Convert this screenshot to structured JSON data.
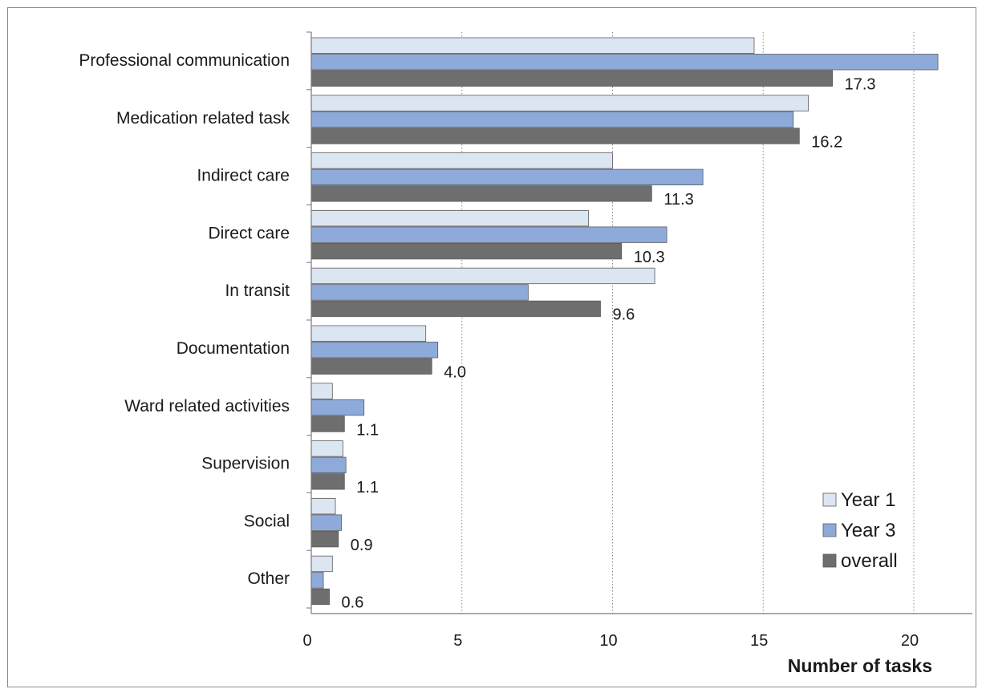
{
  "chart_data": {
    "type": "bar",
    "orientation": "horizontal",
    "title": "",
    "xlabel": "Number of tasks",
    "ylabel": "",
    "xlim": [
      0,
      22
    ],
    "xticks": [
      0,
      5,
      10,
      15,
      20
    ],
    "xtick_labels": [
      "0",
      "5",
      "10",
      "15",
      "20"
    ],
    "grid": "vertical dotted",
    "legend_position": "bottom-right",
    "categories": [
      "Professional communication",
      "Medication related task",
      "Indirect care",
      "Direct care",
      "In transit",
      "Documentation",
      "Ward related  activities",
      "Supervision",
      "Social",
      "Other"
    ],
    "series": [
      {
        "name": "Year 1",
        "color": "#dce6f2",
        "values": [
          14.7,
          16.5,
          10.0,
          9.2,
          11.4,
          3.8,
          0.7,
          1.05,
          0.8,
          0.7
        ]
      },
      {
        "name": "Year 3",
        "color": "#8eaadb",
        "values": [
          20.8,
          16.0,
          13.0,
          11.8,
          7.2,
          4.2,
          1.75,
          1.15,
          1.0,
          0.4
        ]
      },
      {
        "name": "overall",
        "color": "#6e6e6e",
        "values": [
          17.3,
          16.2,
          11.3,
          10.3,
          9.6,
          4.0,
          1.1,
          1.1,
          0.9,
          0.6
        ]
      }
    ],
    "data_labels": [
      "17.3",
      "16.2",
      "11.3",
      "10.3",
      "9.6",
      "4.0",
      "1.1",
      "1.1",
      "0.9",
      "0.6"
    ]
  }
}
